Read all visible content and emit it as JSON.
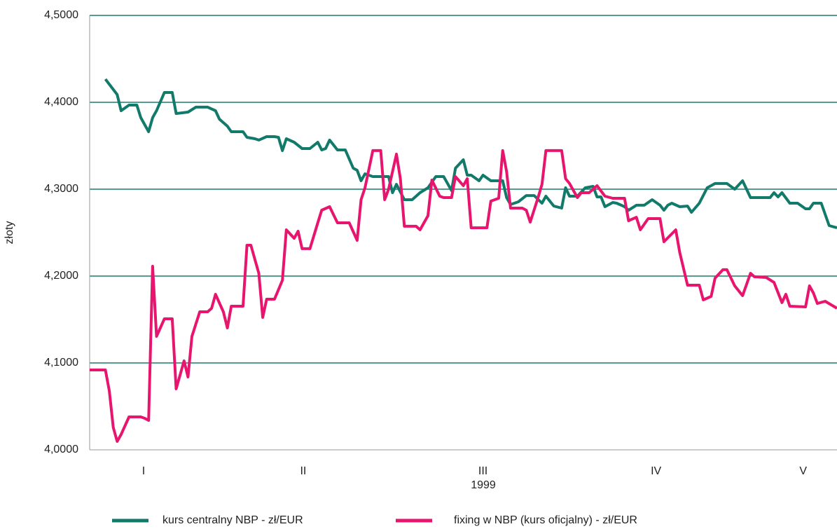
{
  "chart_data": {
    "type": "line",
    "y_label": "złoty",
    "x_label": "1999",
    "xlim": [
      0,
      190
    ],
    "xticks": [
      {
        "value": 13.7,
        "label": "I"
      },
      {
        "value": 54.3,
        "label": "II"
      },
      {
        "value": 100,
        "label": "III"
      },
      {
        "value": 144,
        "label": "IV"
      },
      {
        "value": 181.4,
        "label": "V"
      }
    ],
    "ylim": [
      4.0,
      4.5
    ],
    "yticks": [
      {
        "value": 4.0,
        "label": "4,0000"
      },
      {
        "value": 4.1,
        "label": "4,1000"
      },
      {
        "value": 4.2,
        "label": "4,2000"
      },
      {
        "value": 4.3,
        "label": "4,3000"
      },
      {
        "value": 4.4,
        "label": "4,4000"
      },
      {
        "value": 4.5,
        "label": "4,5000"
      }
    ],
    "grid": true,
    "grid_color": "#1b7a6b",
    "legend": "bottom",
    "series": [
      {
        "name": "kurs centralny NBP - zł/EUR",
        "color": "#117a6a",
        "x": [
          4,
          7,
          8,
          10,
          12,
          13,
          15,
          16,
          17,
          19,
          21,
          22,
          25,
          27,
          30,
          32,
          33,
          35,
          36,
          39,
          40,
          42,
          43,
          45,
          47,
          48,
          49,
          50,
          52,
          54,
          56,
          58,
          59,
          60,
          61,
          63,
          65,
          67,
          68,
          69,
          70,
          72,
          74,
          76,
          77,
          78,
          80,
          82,
          84,
          86,
          88,
          90,
          92,
          93,
          95,
          96,
          97,
          99,
          100,
          102,
          105,
          106,
          107,
          109,
          111,
          113,
          115,
          116,
          118,
          120,
          121,
          122,
          124,
          126,
          128,
          129,
          130,
          131,
          133,
          134,
          136,
          137,
          139,
          141,
          143,
          145,
          146,
          147,
          148,
          150,
          152,
          153,
          155,
          157,
          159,
          162,
          164,
          166,
          168,
          171,
          173,
          174,
          175,
          176,
          178,
          180,
          182,
          183,
          184,
          186,
          188,
          190
        ],
        "values": [
          4.4266,
          4.4089,
          4.3903,
          4.3968,
          4.3968,
          4.3823,
          4.3661,
          4.3823,
          4.3903,
          4.4113,
          4.4113,
          4.3871,
          4.3887,
          4.3944,
          4.3944,
          4.3903,
          4.3806,
          4.3726,
          4.3661,
          4.3661,
          4.3597,
          4.3581,
          4.3565,
          4.3605,
          4.3605,
          4.3597,
          4.3444,
          4.3581,
          4.354,
          4.3468,
          4.3468,
          4.354,
          4.3452,
          4.3468,
          4.3565,
          4.3452,
          4.3452,
          4.3242,
          4.3218,
          4.3097,
          4.3177,
          4.3145,
          4.3145,
          4.3145,
          4.296,
          4.3056,
          4.2879,
          4.2879,
          4.296,
          4.3016,
          4.3145,
          4.3145,
          4.2984,
          4.3242,
          4.3339,
          4.3161,
          4.3161,
          4.3097,
          4.3161,
          4.3097,
          4.3097,
          4.2903,
          4.2823,
          4.2855,
          4.2927,
          4.2927,
          4.2839,
          4.2919,
          4.2806,
          4.2782,
          4.3016,
          4.2919,
          4.2919,
          4.3016,
          4.3032,
          4.2911,
          4.2911,
          4.2798,
          4.2847,
          4.2839,
          4.2798,
          4.2758,
          4.2815,
          4.2815,
          4.2879,
          4.2815,
          4.2758,
          4.2815,
          4.2839,
          4.2798,
          4.2806,
          4.2734,
          4.2839,
          4.3016,
          4.3065,
          4.3065,
          4.3,
          4.3097,
          4.2903,
          4.2903,
          4.2903,
          4.296,
          4.2911,
          4.296,
          4.2839,
          4.2839,
          4.2774,
          4.2774,
          4.2839,
          4.2839,
          4.2581,
          4.2556
        ]
      },
      {
        "name": "fixing w NBP (kurs oficjalny) - zł/EUR",
        "color": "#e8156f",
        "x": [
          0,
          4,
          5,
          6,
          7,
          8,
          10,
          13,
          14,
          15,
          16,
          17,
          19,
          21,
          22,
          24,
          25,
          26,
          28,
          30,
          31,
          32,
          34,
          35,
          36,
          39,
          40,
          41,
          43,
          44,
          45,
          47,
          49,
          50,
          52,
          53,
          54,
          56,
          58,
          59,
          61,
          63,
          66,
          68,
          69,
          70,
          72,
          74,
          75,
          76,
          78,
          79,
          80,
          83,
          84,
          86,
          87,
          89,
          90,
          92,
          93,
          95,
          96,
          97,
          101,
          102,
          104,
          105,
          106,
          107,
          110,
          111,
          112,
          114,
          115,
          116,
          120,
          121,
          122,
          124,
          125,
          127,
          129,
          131,
          133,
          136,
          137,
          139,
          140,
          142,
          145,
          146,
          149,
          150,
          152,
          155,
          156,
          158,
          159,
          161,
          162,
          164,
          166,
          168,
          169,
          172,
          174,
          176,
          177,
          178,
          182,
          183,
          184,
          185,
          187,
          190
        ],
        "values": [
          4.0919,
          4.0919,
          4.0677,
          4.0258,
          4.0097,
          4.0177,
          4.0379,
          4.0379,
          4.0363,
          4.0339,
          4.2113,
          4.1306,
          4.1508,
          4.1508,
          4.0702,
          4.1024,
          4.0839,
          4.1306,
          4.1589,
          4.1589,
          4.1629,
          4.179,
          4.1589,
          4.1403,
          4.1653,
          4.1653,
          4.2355,
          4.2355,
          4.2032,
          4.1524,
          4.1734,
          4.1734,
          4.1952,
          4.2532,
          4.2435,
          4.2516,
          4.2315,
          4.2315,
          4.2613,
          4.2758,
          4.2798,
          4.2613,
          4.2613,
          4.2411,
          4.2879,
          4.3016,
          4.3444,
          4.3444,
          4.2879,
          4.3,
          4.3403,
          4.3121,
          4.2573,
          4.2573,
          4.2532,
          4.2694,
          4.3105,
          4.2919,
          4.2903,
          4.2903,
          4.3145,
          4.304,
          4.3121,
          4.2556,
          4.2556,
          4.2863,
          4.2895,
          4.3444,
          4.3202,
          4.2782,
          4.2782,
          4.2758,
          4.2621,
          4.2903,
          4.3056,
          4.3444,
          4.3444,
          4.3121,
          4.3065,
          4.2903,
          4.296,
          4.296,
          4.304,
          4.2919,
          4.2895,
          4.2895,
          4.2637,
          4.2677,
          4.2532,
          4.2661,
          4.2661,
          4.2395,
          4.2532,
          4.2274,
          4.1895,
          4.1895,
          4.1726,
          4.1766,
          4.1976,
          4.2073,
          4.2073,
          4.1887,
          4.1774,
          4.2032,
          4.1992,
          4.1984,
          4.1927,
          4.1694,
          4.179,
          4.1653,
          4.1645,
          4.1887,
          4.1806,
          4.1685,
          4.171,
          4.1629
        ]
      }
    ]
  }
}
